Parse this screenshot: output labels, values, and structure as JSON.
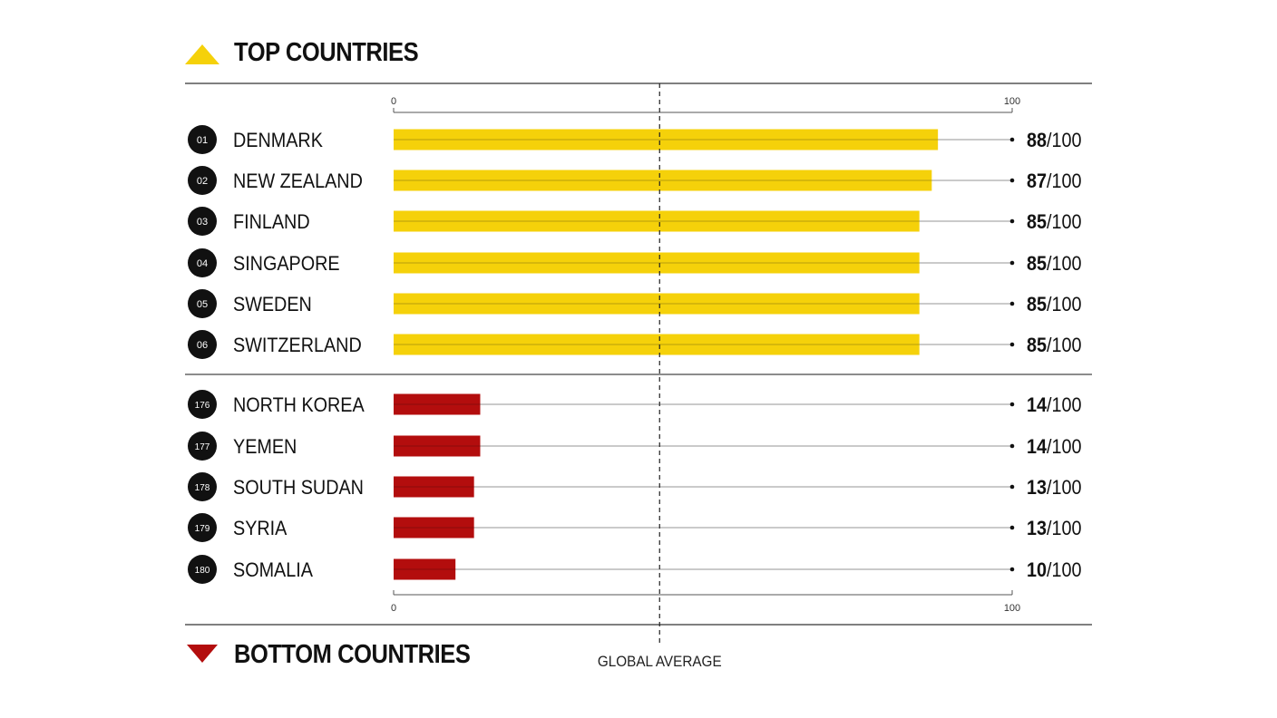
{
  "top_header": {
    "label": "TOP COUNTRIES",
    "icon": "triangle-up-icon",
    "color": "#f5d10a"
  },
  "bottom_header": {
    "label": "BOTTOM COUNTRIES",
    "icon": "triangle-down-icon",
    "color": "#b30d0d"
  },
  "chart_data": {
    "type": "bar",
    "orientation": "horizontal",
    "axis": {
      "min_label": "0",
      "max_label": "100",
      "xlim": [
        0,
        100
      ]
    },
    "reference_line": {
      "label": "GLOBAL AVERAGE",
      "value": 43
    },
    "score_suffix": "/100",
    "groups": [
      {
        "name": "TOP COUNTRIES",
        "color": "#f5d10a",
        "rows": [
          {
            "rank": "01",
            "country": "DENMARK",
            "score": 88
          },
          {
            "rank": "02",
            "country": "NEW ZEALAND",
            "score": 87
          },
          {
            "rank": "03",
            "country": "FINLAND",
            "score": 85
          },
          {
            "rank": "04",
            "country": "SINGAPORE",
            "score": 85
          },
          {
            "rank": "05",
            "country": "SWEDEN",
            "score": 85
          },
          {
            "rank": "06",
            "country": "SWITZERLAND",
            "score": 85
          }
        ]
      },
      {
        "name": "BOTTOM COUNTRIES",
        "color": "#b30d0d",
        "rows": [
          {
            "rank": "176",
            "country": "NORTH KOREA",
            "score": 14
          },
          {
            "rank": "177",
            "country": "YEMEN",
            "score": 14
          },
          {
            "rank": "178",
            "country": "SOUTH SUDAN",
            "score": 13
          },
          {
            "rank": "179",
            "country": "SYRIA",
            "score": 13
          },
          {
            "rank": "180",
            "country": "SOMALIA",
            "score": 10
          }
        ]
      }
    ]
  }
}
